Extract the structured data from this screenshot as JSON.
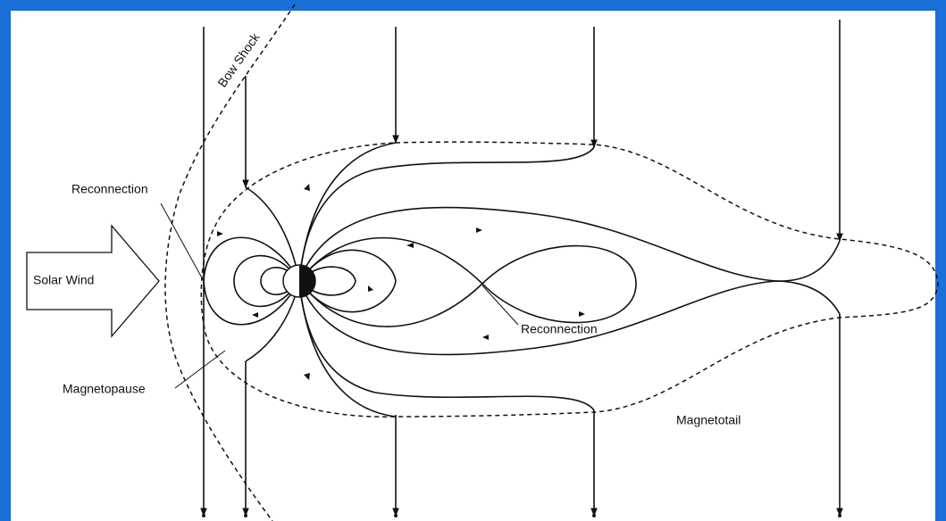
{
  "labels": {
    "bow_shock": "Bow Shock",
    "reconnection_dayside": "Reconnection",
    "solar_wind": "Solar Wind",
    "magnetopause": "Magnetopause",
    "reconnection_tail": "Reconnection",
    "magnetotail": "Magnetotail"
  }
}
